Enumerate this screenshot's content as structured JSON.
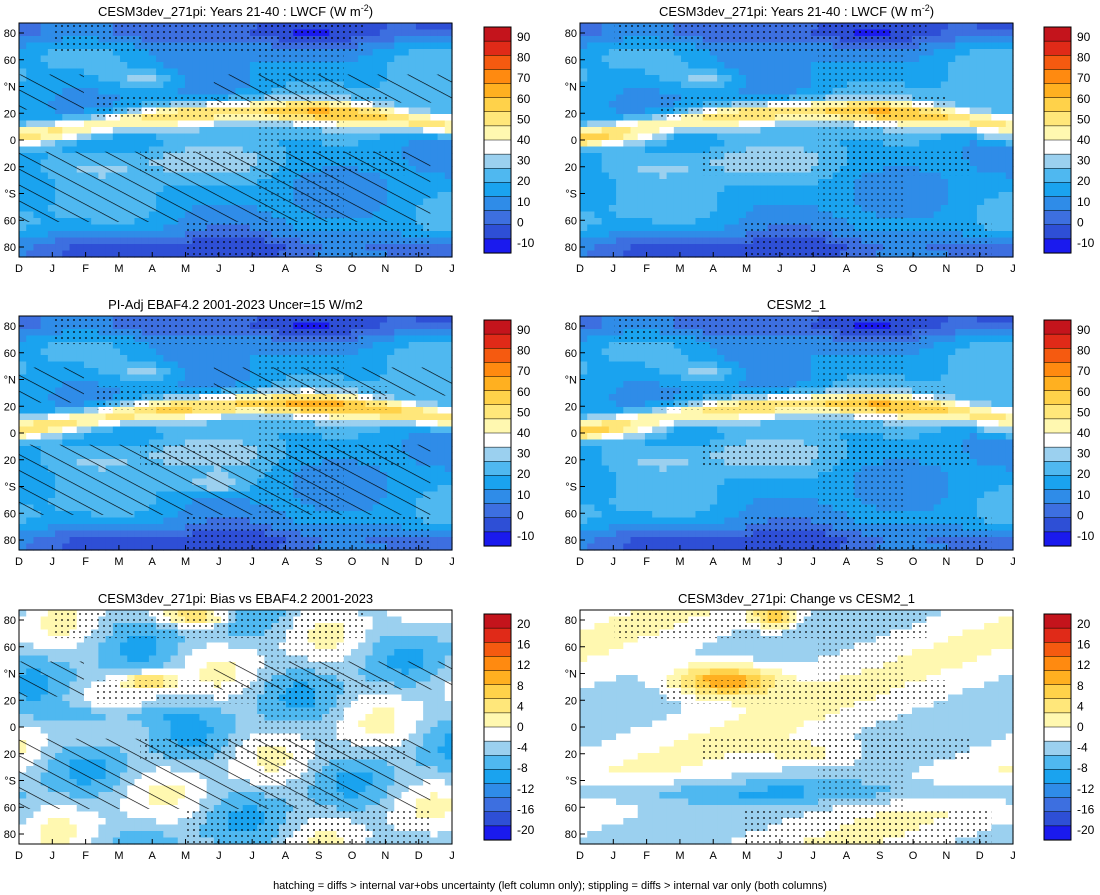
{
  "caption": "hatching = diffs > internal var+obs uncertainty (left column only); stippling = diffs > internal var only (both columns)",
  "chart_data": [
    {
      "type": "heatmap",
      "title": "CESM3dev_271pi: Years 21-40 : LWCF (W m",
      "title_unit_sup": "-2",
      "title_suffix": ")",
      "x_ticks": [
        "D",
        "J",
        "F",
        "M",
        "A",
        "M",
        "J",
        "J",
        "A",
        "S",
        "O",
        "N",
        "D",
        "J"
      ],
      "y_ticks": [
        "80",
        "60",
        "°N",
        "20",
        "0",
        "20",
        "°S",
        "60",
        "80"
      ],
      "colorbar_labels": [
        "90",
        "80",
        "70",
        "60",
        "50",
        "40",
        "30",
        "20",
        "10",
        "0",
        "-10"
      ],
      "colorbar_levels": [
        90,
        80,
        70,
        60,
        50,
        40,
        30,
        20,
        10,
        0,
        -10
      ],
      "hatching": true,
      "stippling": true
    },
    {
      "type": "heatmap",
      "title": "CESM3dev_271pi: Years 21-40 : LWCF (W m",
      "title_unit_sup": "-2",
      "title_suffix": ")",
      "x_ticks": [
        "D",
        "J",
        "F",
        "M",
        "A",
        "M",
        "J",
        "J",
        "A",
        "S",
        "O",
        "N",
        "D",
        "J"
      ],
      "y_ticks": [
        "80",
        "60",
        "°N",
        "20",
        "0",
        "20",
        "°S",
        "60",
        "80"
      ],
      "colorbar_labels": [
        "90",
        "80",
        "70",
        "60",
        "50",
        "40",
        "30",
        "20",
        "10",
        "0",
        "-10"
      ],
      "colorbar_levels": [
        90,
        80,
        70,
        60,
        50,
        40,
        30,
        20,
        10,
        0,
        -10
      ],
      "hatching": false,
      "stippling": true
    },
    {
      "type": "heatmap",
      "title": "PI-Adj EBAF4.2 2001-2023 Uncer=15 W/m2",
      "x_ticks": [
        "D",
        "J",
        "F",
        "M",
        "A",
        "M",
        "J",
        "J",
        "A",
        "S",
        "O",
        "N",
        "D",
        "J"
      ],
      "y_ticks": [
        "80",
        "60",
        "°N",
        "20",
        "0",
        "20",
        "°S",
        "60",
        "80"
      ],
      "colorbar_labels": [
        "90",
        "80",
        "70",
        "60",
        "50",
        "40",
        "30",
        "20",
        "10",
        "0",
        "-10"
      ],
      "colorbar_levels": [
        90,
        80,
        70,
        60,
        50,
        40,
        30,
        20,
        10,
        0,
        -10
      ],
      "hatching": true,
      "stippling": true
    },
    {
      "type": "heatmap",
      "title": "CESM2_1",
      "x_ticks": [
        "D",
        "J",
        "F",
        "M",
        "A",
        "M",
        "J",
        "J",
        "A",
        "S",
        "O",
        "N",
        "D",
        "J"
      ],
      "y_ticks": [
        "80",
        "60",
        "°N",
        "20",
        "0",
        "20",
        "°S",
        "60",
        "80"
      ],
      "colorbar_labels": [
        "90",
        "80",
        "70",
        "60",
        "50",
        "40",
        "30",
        "20",
        "10",
        "0",
        "-10"
      ],
      "colorbar_levels": [
        90,
        80,
        70,
        60,
        50,
        40,
        30,
        20,
        10,
        0,
        -10
      ],
      "hatching": false,
      "stippling": true
    },
    {
      "type": "heatmap",
      "title": "CESM3dev_271pi: Bias vs EBAF4.2 2001-2023",
      "x_ticks": [
        "D",
        "J",
        "F",
        "M",
        "A",
        "M",
        "J",
        "J",
        "A",
        "S",
        "O",
        "N",
        "D",
        "J"
      ],
      "y_ticks": [
        "80",
        "60",
        "°N",
        "20",
        "0",
        "20",
        "°S",
        "60",
        "80"
      ],
      "colorbar_labels": [
        "20",
        "16",
        "12",
        "8",
        "4",
        "0",
        "-4",
        "-8",
        "-12",
        "-16",
        "-20"
      ],
      "colorbar_levels": [
        20,
        16,
        12,
        8,
        4,
        0,
        -4,
        -8,
        -12,
        -16,
        -20
      ],
      "hatching": true,
      "stippling": true
    },
    {
      "type": "heatmap",
      "title": "CESM3dev_271pi: Change vs CESM2_1",
      "x_ticks": [
        "D",
        "J",
        "F",
        "M",
        "A",
        "M",
        "J",
        "J",
        "A",
        "S",
        "O",
        "N",
        "D",
        "J"
      ],
      "y_ticks": [
        "80",
        "60",
        "°N",
        "20",
        "0",
        "20",
        "°S",
        "60",
        "80"
      ],
      "colorbar_labels": [
        "20",
        "16",
        "12",
        "8",
        "4",
        "0",
        "-4",
        "-8",
        "-12",
        "-16",
        "-20"
      ],
      "colorbar_levels": [
        20,
        16,
        12,
        8,
        4,
        0,
        -4,
        -8,
        -12,
        -16,
        -20
      ],
      "hatching": false,
      "stippling": true
    }
  ],
  "colormap": [
    "#1a1aee",
    "#2e4fd6",
    "#3d6fe0",
    "#2f8ce8",
    "#1aa3ef",
    "#4fb8f0",
    "#9bd0ef",
    "#ffffff",
    "#fff8b0",
    "#ffe77a",
    "#ffd24a",
    "#ffb020",
    "#ff8a10",
    "#f55a10",
    "#e02a18",
    "#c4141c"
  ]
}
